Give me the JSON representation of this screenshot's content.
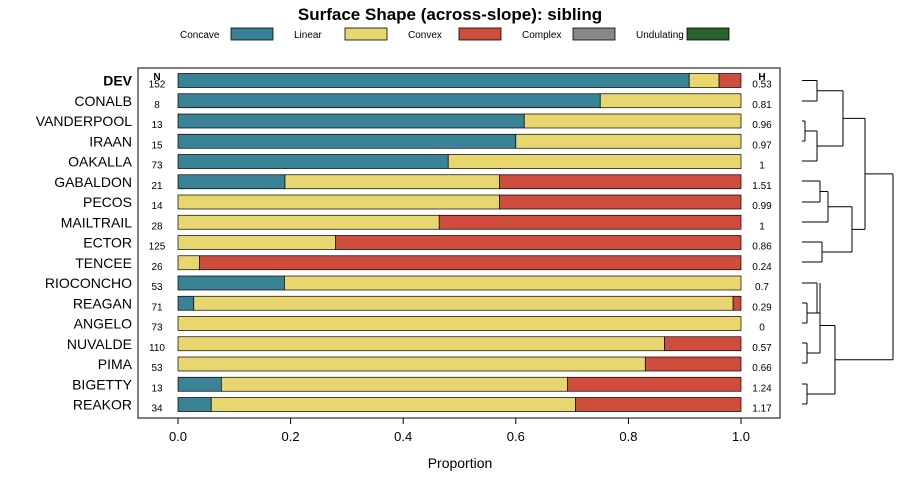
{
  "chart_data": {
    "type": "bar",
    "orientation": "horizontal",
    "stacked": true,
    "title": "Surface Shape (across-slope): sibling",
    "xlabel": "Proportion",
    "xlim": [
      0,
      1
    ],
    "xticks": [
      "0.0",
      "0.2",
      "0.4",
      "0.6",
      "0.8",
      "1.0"
    ],
    "n_header": "N",
    "h_header": "H",
    "legend": [
      {
        "name": "Concave",
        "color": "#3a8296"
      },
      {
        "name": "Linear",
        "color": "#e8d66e"
      },
      {
        "name": "Convex",
        "color": "#cf4d3c"
      },
      {
        "name": "Complex",
        "color": "#888888"
      },
      {
        "name": "Undulating",
        "color": "#27642e"
      }
    ],
    "rows": [
      {
        "name": "DEV",
        "bold": true,
        "n": "152",
        "h": "0.53",
        "values": [
          0.908,
          0.053,
          0.039,
          0,
          0
        ]
      },
      {
        "name": "CONALB",
        "bold": false,
        "n": "8",
        "h": "0.81",
        "values": [
          0.75,
          0.25,
          0,
          0,
          0
        ]
      },
      {
        "name": "VANDERPOOL",
        "bold": false,
        "n": "13",
        "h": "0.96",
        "values": [
          0.615,
          0.385,
          0,
          0,
          0
        ]
      },
      {
        "name": "IRAAN",
        "bold": false,
        "n": "15",
        "h": "0.97",
        "values": [
          0.6,
          0.4,
          0,
          0,
          0
        ]
      },
      {
        "name": "OAKALLA",
        "bold": false,
        "n": "73",
        "h": "1",
        "values": [
          0.48,
          0.52,
          0,
          0,
          0
        ]
      },
      {
        "name": "GABALDON",
        "bold": false,
        "n": "21",
        "h": "1.51",
        "values": [
          0.19,
          0.381,
          0.429,
          0,
          0
        ]
      },
      {
        "name": "PECOS",
        "bold": false,
        "n": "14",
        "h": "0.99",
        "values": [
          0,
          0.571,
          0.429,
          0,
          0
        ]
      },
      {
        "name": "MAILTRAIL",
        "bold": false,
        "n": "28",
        "h": "1",
        "values": [
          0,
          0.464,
          0.536,
          0,
          0
        ]
      },
      {
        "name": "ECTOR",
        "bold": false,
        "n": "125",
        "h": "0.86",
        "values": [
          0,
          0.28,
          0.72,
          0,
          0
        ]
      },
      {
        "name": "TENCEE",
        "bold": false,
        "n": "26",
        "h": "0.24",
        "values": [
          0,
          0.038,
          0.962,
          0,
          0
        ]
      },
      {
        "name": "RIOCONCHO",
        "bold": false,
        "n": "53",
        "h": "0.7",
        "values": [
          0.189,
          0.811,
          0,
          0,
          0
        ]
      },
      {
        "name": "REAGAN",
        "bold": false,
        "n": "71",
        "h": "0.29",
        "values": [
          0.028,
          0.958,
          0.014,
          0,
          0
        ]
      },
      {
        "name": "ANGELO",
        "bold": false,
        "n": "73",
        "h": "0",
        "values": [
          0,
          1,
          0,
          0,
          0
        ]
      },
      {
        "name": "NUVALDE",
        "bold": false,
        "n": "110",
        "h": "0.57",
        "values": [
          0,
          0.864,
          0.136,
          0,
          0
        ]
      },
      {
        "name": "PIMA",
        "bold": false,
        "n": "53",
        "h": "0.66",
        "values": [
          0,
          0.83,
          0.17,
          0,
          0
        ]
      },
      {
        "name": "BIGETTY",
        "bold": false,
        "n": "13",
        "h": "1.24",
        "values": [
          0.077,
          0.615,
          0.308,
          0,
          0
        ]
      },
      {
        "name": "REAKOR",
        "bold": false,
        "n": "34",
        "h": "1.17",
        "values": [
          0.059,
          0.647,
          0.294,
          0,
          0
        ]
      }
    ]
  }
}
